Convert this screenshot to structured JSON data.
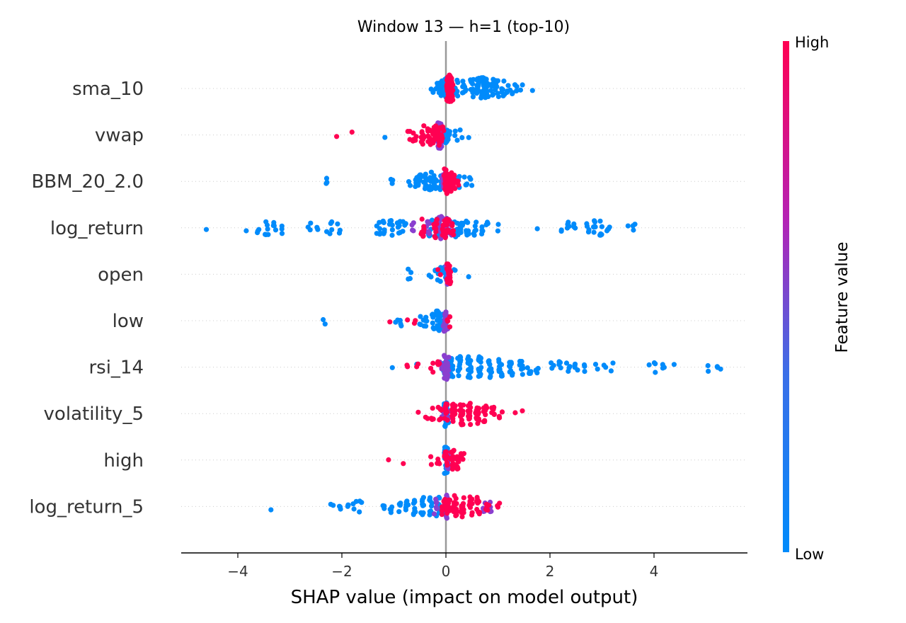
{
  "chart_data": {
    "type": "scatter",
    "title": "Window 13 — h=1 (top-10)",
    "xlabel": "SHAP value (impact on model output)",
    "xlim": [
      -5.1,
      5.7
    ],
    "xticks": [
      -4,
      -2,
      0,
      2,
      4
    ],
    "xtick_labels": [
      "−4",
      "−2",
      "0",
      "2",
      "4"
    ],
    "colorbar": {
      "label": "Feature value",
      "high_label": "High",
      "low_label": "Low",
      "high_color": "#ff0052",
      "low_color": "#008bfb",
      "mid_color": "#8a3fcf"
    },
    "features": [
      {
        "name": "sma_10",
        "high": [
          [
            0.05,
            40
          ],
          [
            0.08,
            30
          ],
          [
            0.1,
            20
          ]
        ],
        "mid": [
          [
            0.06,
            12
          ]
        ],
        "low": [
          [
            -0.3,
            1
          ],
          [
            -0.22,
            2
          ],
          [
            -0.15,
            3
          ],
          [
            -0.1,
            6
          ],
          [
            -0.05,
            10
          ],
          [
            0.0,
            14
          ],
          [
            0.2,
            8
          ],
          [
            0.35,
            8
          ],
          [
            0.5,
            10
          ],
          [
            0.62,
            14
          ],
          [
            0.7,
            18
          ],
          [
            0.78,
            14
          ],
          [
            0.88,
            10
          ],
          [
            0.98,
            8
          ],
          [
            1.1,
            6
          ],
          [
            1.2,
            4
          ],
          [
            1.3,
            3
          ],
          [
            1.38,
            2
          ],
          [
            1.46,
            2
          ],
          [
            1.68,
            1
          ]
        ]
      },
      {
        "name": "vwap",
        "high": [
          [
            -2.13,
            1
          ],
          [
            -1.8,
            1
          ],
          [
            -0.72,
            3
          ],
          [
            -0.6,
            6
          ],
          [
            -0.45,
            10
          ],
          [
            -0.32,
            12
          ],
          [
            -0.22,
            14
          ],
          [
            -0.14,
            14
          ],
          [
            -0.07,
            8
          ]
        ],
        "mid": [
          [
            -0.12,
            30
          ],
          [
            -0.1,
            20
          ]
        ],
        "low": [
          [
            -1.2,
            1
          ],
          [
            -0.14,
            10
          ],
          [
            -0.08,
            12
          ],
          [
            0.0,
            10
          ],
          [
            0.05,
            6
          ],
          [
            0.2,
            3
          ],
          [
            0.28,
            2
          ],
          [
            0.42,
            1
          ]
        ]
      },
      {
        "name": "BBM_20_2.0",
        "high": [
          [
            0.0,
            30
          ],
          [
            0.08,
            12
          ],
          [
            0.15,
            8
          ],
          [
            0.22,
            3
          ]
        ],
        "mid": [
          [
            0.02,
            10
          ],
          [
            -0.05,
            6
          ]
        ],
        "low": [
          [
            -2.3,
            3
          ],
          [
            -1.05,
            4
          ],
          [
            -0.68,
            2
          ],
          [
            -0.58,
            5
          ],
          [
            -0.5,
            8
          ],
          [
            -0.4,
            10
          ],
          [
            -0.3,
            12
          ],
          [
            -0.2,
            10
          ],
          [
            -0.12,
            8
          ],
          [
            -0.05,
            6
          ],
          [
            0.25,
            4
          ],
          [
            0.38,
            4
          ],
          [
            0.48,
            3
          ]
        ]
      },
      {
        "name": "log_return",
        "high": [
          [
            -0.45,
            10
          ],
          [
            -0.2,
            12
          ],
          [
            -0.05,
            10
          ],
          [
            0.02,
            12
          ],
          [
            0.12,
            6
          ]
        ],
        "mid": [
          [
            -0.65,
            4
          ],
          [
            -0.35,
            8
          ],
          [
            -0.1,
            20
          ],
          [
            0.0,
            14
          ],
          [
            0.08,
            6
          ]
        ],
        "low": [
          [
            -4.6,
            1
          ],
          [
            -3.85,
            1
          ],
          [
            -3.6,
            3
          ],
          [
            -3.45,
            6
          ],
          [
            -3.3,
            4
          ],
          [
            -3.12,
            3
          ],
          [
            -2.62,
            3
          ],
          [
            -2.48,
            2
          ],
          [
            -2.3,
            1
          ],
          [
            -2.2,
            4
          ],
          [
            -2.05,
            3
          ],
          [
            -1.3,
            6
          ],
          [
            -1.18,
            6
          ],
          [
            -1.05,
            6
          ],
          [
            -0.9,
            6
          ],
          [
            -0.8,
            4
          ],
          [
            -0.3,
            8
          ],
          [
            -0.15,
            10
          ],
          [
            0.2,
            10
          ],
          [
            0.3,
            10
          ],
          [
            0.42,
            8
          ],
          [
            0.55,
            6
          ],
          [
            0.68,
            4
          ],
          [
            0.8,
            3
          ],
          [
            1.0,
            2
          ],
          [
            1.75,
            1
          ],
          [
            2.25,
            2
          ],
          [
            2.35,
            4
          ],
          [
            2.48,
            3
          ],
          [
            2.72,
            4
          ],
          [
            2.85,
            6
          ],
          [
            2.98,
            6
          ],
          [
            3.12,
            4
          ],
          [
            3.48,
            1
          ],
          [
            3.62,
            3
          ]
        ]
      },
      {
        "name": "open",
        "high": [
          [
            -0.12,
            2
          ],
          [
            0.05,
            16
          ],
          [
            0.08,
            8
          ]
        ],
        "mid": [
          [
            0.02,
            14
          ]
        ],
        "low": [
          [
            -0.7,
            4
          ],
          [
            -0.3,
            2
          ],
          [
            -0.18,
            4
          ],
          [
            -0.1,
            6
          ],
          [
            0.0,
            10
          ],
          [
            0.15,
            2
          ],
          [
            0.42,
            1
          ]
        ]
      },
      {
        "name": "low",
        "high": [
          [
            -1.1,
            1
          ],
          [
            -0.75,
            1
          ],
          [
            -0.58,
            2
          ],
          [
            0.05,
            4
          ]
        ],
        "mid": [
          [
            -0.02,
            14
          ],
          [
            0.0,
            8
          ]
        ],
        "low": [
          [
            -2.35,
            2
          ],
          [
            -0.95,
            2
          ],
          [
            -0.85,
            3
          ],
          [
            -0.48,
            3
          ],
          [
            -0.4,
            6
          ],
          [
            -0.25,
            10
          ],
          [
            -0.15,
            12
          ],
          [
            -0.08,
            12
          ],
          [
            -0.02,
            8
          ]
        ]
      },
      {
        "name": "rsi_14",
        "high": [
          [
            -0.72,
            2
          ],
          [
            -0.55,
            2
          ],
          [
            -0.28,
            3
          ],
          [
            -0.15,
            4
          ]
        ],
        "mid": [
          [
            -0.1,
            6
          ],
          [
            0.0,
            20
          ],
          [
            0.03,
            12
          ]
        ],
        "low": [
          [
            -1.0,
            1
          ],
          [
            -0.58,
            1
          ],
          [
            -0.02,
            10
          ],
          [
            0.1,
            12
          ],
          [
            0.25,
            14
          ],
          [
            0.45,
            16
          ],
          [
            0.65,
            16
          ],
          [
            0.85,
            14
          ],
          [
            1.05,
            12
          ],
          [
            1.25,
            10
          ],
          [
            1.45,
            8
          ],
          [
            1.6,
            6
          ],
          [
            1.75,
            4
          ],
          [
            2.05,
            3
          ],
          [
            2.2,
            4
          ],
          [
            2.35,
            4
          ],
          [
            2.5,
            4
          ],
          [
            2.68,
            3
          ],
          [
            2.9,
            2
          ],
          [
            3.05,
            2
          ],
          [
            3.2,
            2
          ],
          [
            3.88,
            1
          ],
          [
            4.02,
            3
          ],
          [
            4.18,
            3
          ],
          [
            4.42,
            1
          ],
          [
            5.05,
            2
          ],
          [
            5.2,
            3
          ],
          [
            5.3,
            1
          ]
        ]
      },
      {
        "name": "volatility_5",
        "high": [
          [
            -0.55,
            1
          ],
          [
            -0.38,
            2
          ],
          [
            -0.25,
            4
          ],
          [
            -0.12,
            6
          ],
          [
            0.0,
            12
          ],
          [
            0.15,
            16
          ],
          [
            0.3,
            18
          ],
          [
            0.45,
            16
          ],
          [
            0.6,
            14
          ],
          [
            0.75,
            10
          ],
          [
            0.9,
            6
          ],
          [
            1.05,
            3
          ],
          [
            1.35,
            1
          ],
          [
            1.48,
            1
          ]
        ],
        "mid": [
          [
            0.02,
            10
          ],
          [
            -0.05,
            6
          ]
        ],
        "low": [
          [
            0.0,
            24
          ],
          [
            0.03,
            10
          ]
        ]
      },
      {
        "name": "high",
        "high": [
          [
            -1.1,
            1
          ],
          [
            -0.82,
            1
          ],
          [
            -0.3,
            2
          ],
          [
            -0.15,
            4
          ],
          [
            0.0,
            8
          ],
          [
            0.12,
            12
          ],
          [
            0.22,
            10
          ],
          [
            0.32,
            5
          ]
        ],
        "mid": [
          [
            0.02,
            10
          ]
        ],
        "low": [
          [
            0.0,
            26
          ],
          [
            0.02,
            12
          ]
        ]
      },
      {
        "name": "log_return_5",
        "high": [
          [
            -0.05,
            10
          ],
          [
            0.05,
            14
          ],
          [
            0.18,
            16
          ],
          [
            0.32,
            14
          ],
          [
            0.48,
            12
          ],
          [
            0.62,
            10
          ],
          [
            0.8,
            6
          ],
          [
            1.0,
            3
          ]
        ],
        "mid": [
          [
            0.0,
            20
          ],
          [
            0.72,
            4
          ],
          [
            0.88,
            4
          ],
          [
            -0.2,
            6
          ]
        ],
        "low": [
          [
            -3.35,
            1
          ],
          [
            -2.2,
            2
          ],
          [
            -2.05,
            3
          ],
          [
            -1.9,
            3
          ],
          [
            -1.75,
            3
          ],
          [
            -1.65,
            3
          ],
          [
            -1.2,
            3
          ],
          [
            -1.05,
            4
          ],
          [
            -0.9,
            5
          ],
          [
            -0.75,
            6
          ],
          [
            -0.6,
            8
          ],
          [
            -0.45,
            10
          ],
          [
            -0.3,
            10
          ],
          [
            -0.15,
            12
          ],
          [
            0.0,
            14
          ]
        ]
      }
    ]
  }
}
